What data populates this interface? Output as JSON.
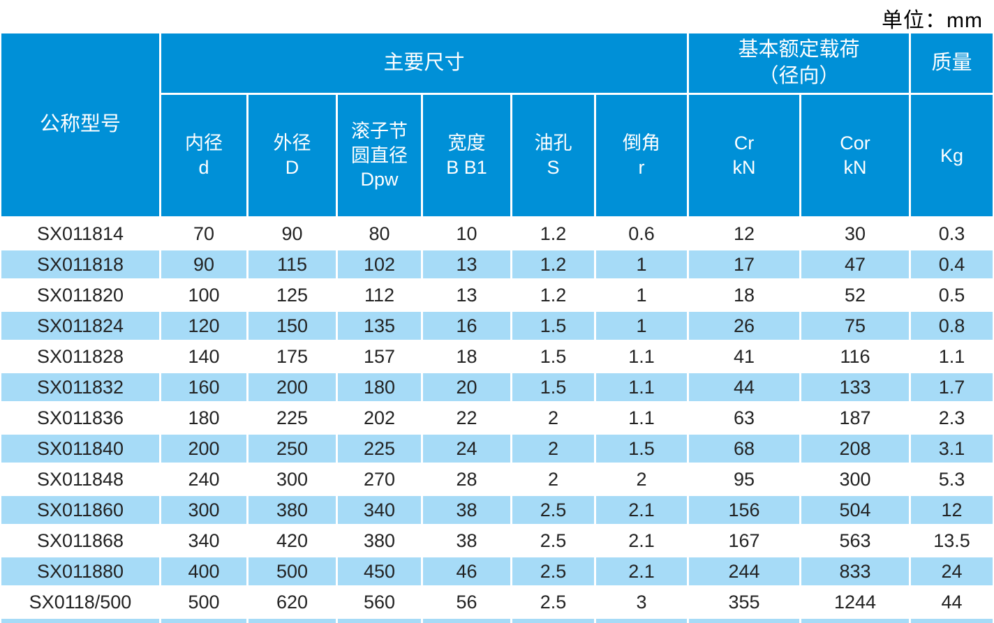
{
  "unit_label": "单位：mm",
  "colors": {
    "header_blue": "#0090D7",
    "stripe_blue": "#A6DBF7",
    "header_text": "#FFFFFF",
    "body_text": "#222222"
  },
  "table": {
    "header": {
      "model": "公称型号",
      "main_dims": "主要尺寸",
      "rated_load": "基本额定载荷\n（径向）",
      "mass": "质量",
      "sub": {
        "inner_diameter": "内径\nd",
        "outer_diameter": "外径\nD",
        "roller_pitch_diameter": "滚子节\n圆直径\nDpw",
        "width": "宽度\nB B1",
        "oil_hole": "油孔\nS",
        "chamfer": "倒角\nr",
        "cr": "Cr\nkN",
        "cor": "Cor\nkN",
        "kg": "Kg"
      }
    },
    "rows": [
      [
        "SX011814",
        "70",
        "90",
        "80",
        "10",
        "1.2",
        "0.6",
        "12",
        "30",
        "0.3"
      ],
      [
        "SX011818",
        "90",
        "115",
        "102",
        "13",
        "1.2",
        "1",
        "17",
        "47",
        "0.4"
      ],
      [
        "SX011820",
        "100",
        "125",
        "112",
        "13",
        "1.2",
        "1",
        "18",
        "52",
        "0.5"
      ],
      [
        "SX011824",
        "120",
        "150",
        "135",
        "16",
        "1.5",
        "1",
        "26",
        "75",
        "0.8"
      ],
      [
        "SX011828",
        "140",
        "175",
        "157",
        "18",
        "1.5",
        "1.1",
        "41",
        "116",
        "1.1"
      ],
      [
        "SX011832",
        "160",
        "200",
        "180",
        "20",
        "1.5",
        "1.1",
        "44",
        "133",
        "1.7"
      ],
      [
        "SX011836",
        "180",
        "225",
        "202",
        "22",
        "2",
        "1.1",
        "63",
        "187",
        "2.3"
      ],
      [
        "SX011840",
        "200",
        "250",
        "225",
        "24",
        "2",
        "1.5",
        "68",
        "208",
        "3.1"
      ],
      [
        "SX011848",
        "240",
        "300",
        "270",
        "28",
        "2",
        "2",
        "95",
        "300",
        "5.3"
      ],
      [
        "SX011860",
        "300",
        "380",
        "340",
        "38",
        "2.5",
        "2.1",
        "156",
        "504",
        "12"
      ],
      [
        "SX011868",
        "340",
        "420",
        "380",
        "38",
        "2.5",
        "2.1",
        "167",
        "563",
        "13.5"
      ],
      [
        "SX011880",
        "400",
        "500",
        "450",
        "46",
        "2.5",
        "2.1",
        "244",
        "833",
        "24"
      ],
      [
        "SX0118/500",
        "500",
        "620",
        "560",
        "56",
        "2.5",
        "3",
        "355",
        "1244",
        "44"
      ]
    ],
    "partial_row_visible": true
  }
}
